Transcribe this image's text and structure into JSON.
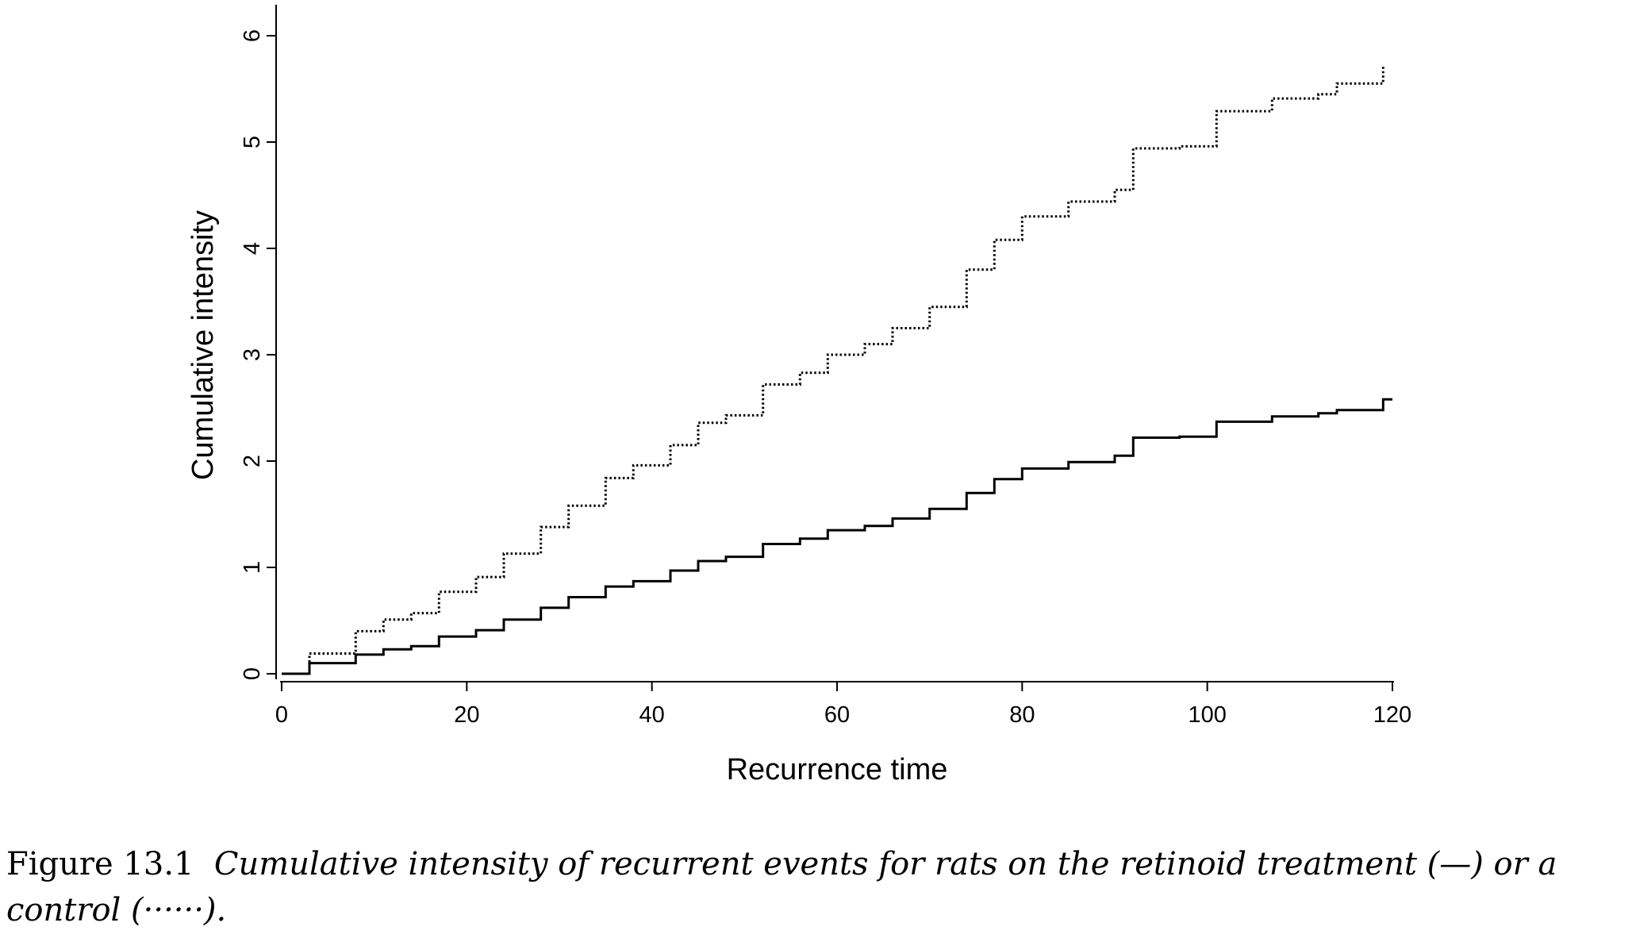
{
  "chart_data": {
    "type": "line",
    "xlabel": "Recurrence time",
    "ylabel": "Cumulative intensity",
    "xlim": [
      0,
      120
    ],
    "ylim": [
      0,
      6.2
    ],
    "xticks": [
      0,
      20,
      40,
      60,
      80,
      100,
      120
    ],
    "yticks": [
      0,
      1,
      2,
      3,
      4,
      5,
      6
    ],
    "grid": false,
    "step": true,
    "series": [
      {
        "name": "retinoid treatment",
        "style": "solid",
        "color": "#000000",
        "x": [
          0,
          3,
          8,
          11,
          14,
          17,
          21,
          24,
          28,
          31,
          35,
          38,
          42,
          45,
          48,
          52,
          56,
          59,
          63,
          66,
          70,
          74,
          77,
          80,
          85,
          90,
          92,
          97,
          101,
          107,
          112,
          114,
          119,
          120
        ],
        "y": [
          0,
          0.1,
          0.18,
          0.23,
          0.26,
          0.35,
          0.41,
          0.51,
          0.62,
          0.72,
          0.82,
          0.87,
          0.97,
          1.06,
          1.1,
          1.22,
          1.27,
          1.35,
          1.39,
          1.46,
          1.55,
          1.7,
          1.83,
          1.93,
          1.99,
          2.05,
          2.22,
          2.23,
          2.37,
          2.42,
          2.45,
          2.48,
          2.58,
          2.58
        ]
      },
      {
        "name": "control",
        "style": "dotted",
        "color": "#000000",
        "x": [
          0,
          3,
          8,
          11,
          14,
          17,
          21,
          24,
          28,
          31,
          35,
          38,
          42,
          45,
          48,
          52,
          56,
          59,
          63,
          66,
          70,
          74,
          77,
          80,
          85,
          90,
          92,
          97,
          101,
          107,
          112,
          114,
          119
        ],
        "y": [
          0,
          0.19,
          0.4,
          0.51,
          0.57,
          0.77,
          0.91,
          1.13,
          1.38,
          1.58,
          1.84,
          1.96,
          2.15,
          2.36,
          2.43,
          2.72,
          2.83,
          3.0,
          3.1,
          3.25,
          3.45,
          3.8,
          4.08,
          4.3,
          4.44,
          4.55,
          4.94,
          4.96,
          5.29,
          5.41,
          5.45,
          5.55,
          5.72
        ]
      }
    ]
  },
  "caption": {
    "label": "Figure 13.1",
    "line1": "Cumulative intensity of recurrent events for rats on the retinoid treatment (—) or a",
    "line2": "control (······)."
  }
}
